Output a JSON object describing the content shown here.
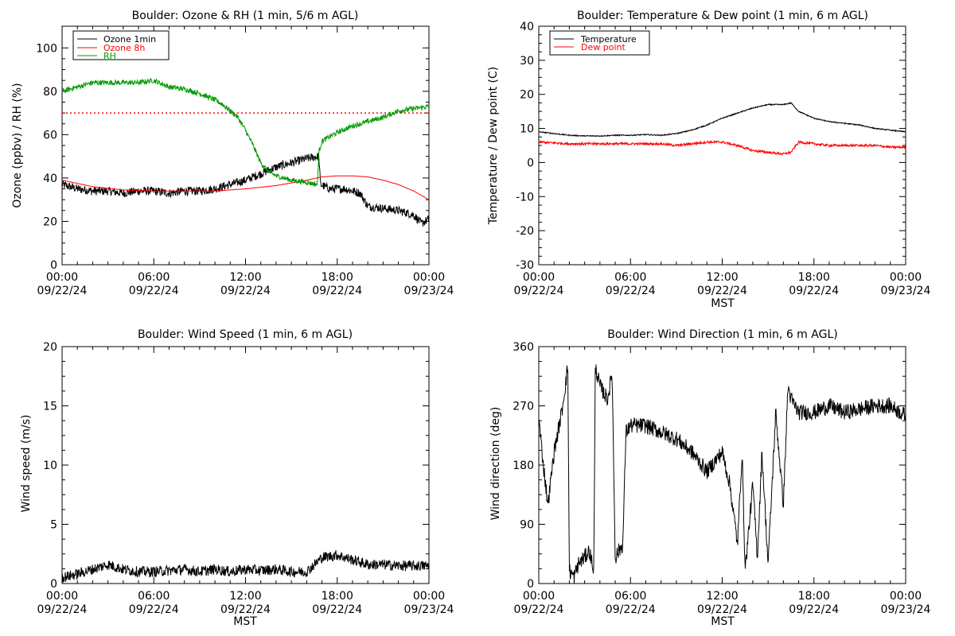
{
  "chart_data": [
    {
      "type": "line",
      "title": "Boulder: Ozone & RH (1 min, 5/6 m AGL)",
      "xlabel": "",
      "ylabel": "Ozone (ppbv) / RH (%)",
      "ylim": [
        0,
        110
      ],
      "yticks": [
        "0",
        "20",
        "40",
        "60",
        "80",
        "100"
      ],
      "xlim_hours": [
        0,
        24
      ],
      "xticks": [
        {
          "time": "00:00",
          "date": "09/22/24"
        },
        {
          "time": "06:00",
          "date": "09/22/24"
        },
        {
          "time": "12:00",
          "date": "09/22/24"
        },
        {
          "time": "18:00",
          "date": "09/22/24"
        },
        {
          "time": "00:00",
          "date": "09/23/24"
        }
      ],
      "legend_position": "top-left",
      "reference_line": {
        "value": 70,
        "style": "dotted",
        "color": "#ff0000"
      },
      "series": [
        {
          "name": "Ozone 1min",
          "color": "#000000",
          "noise": 2.0,
          "x": [
            0,
            1,
            2,
            3,
            4,
            5,
            6,
            7,
            8,
            9,
            10,
            11,
            12,
            13,
            14,
            15,
            16,
            16.8,
            16.9,
            17.5,
            18.5,
            19.5,
            20,
            21,
            22,
            23,
            23.5,
            24
          ],
          "y": [
            37,
            35,
            34,
            34,
            33,
            34,
            34,
            33,
            34,
            34,
            35,
            37,
            39,
            42,
            45,
            47,
            49,
            50,
            37,
            35,
            35,
            33,
            27,
            26,
            25,
            23,
            19,
            21
          ]
        },
        {
          "name": "Ozone 8h",
          "color": "#ff0000",
          "noise": 0,
          "x": [
            0,
            2,
            4,
            6,
            8,
            10,
            12,
            14,
            16,
            17,
            18,
            19,
            20,
            21,
            22,
            23,
            24
          ],
          "y": [
            39,
            36,
            34.5,
            34,
            34,
            34,
            35,
            36.5,
            39,
            40.5,
            41,
            41,
            40.5,
            39,
            37,
            34,
            30
          ]
        },
        {
          "name": "RH",
          "color": "#009900",
          "noise": 1.2,
          "x": [
            0,
            1,
            2,
            3,
            4,
            5,
            6,
            7,
            8,
            9,
            10,
            10.5,
            11,
            11.5,
            12,
            12.5,
            13,
            13.5,
            14,
            15,
            16,
            16.7,
            16.8,
            17,
            18,
            19,
            20,
            21,
            22,
            23,
            24
          ],
          "y": [
            80,
            82,
            84,
            84,
            84,
            84,
            85,
            82,
            81,
            79,
            76,
            74,
            71,
            68,
            62,
            55,
            47,
            43,
            41,
            39,
            38,
            37,
            52,
            57,
            61,
            64,
            66,
            68,
            71,
            72,
            73
          ]
        }
      ]
    },
    {
      "type": "line",
      "title": "Boulder: Temperature & Dew point (1 min, 6 m AGL)",
      "xlabel": "MST",
      "ylabel": "Temperature / Dew point (C)",
      "ylim": [
        -30,
        40
      ],
      "yticks": [
        "-30",
        "-20",
        "-10",
        "0",
        "10",
        "20",
        "30",
        "40"
      ],
      "xlim_hours": [
        0,
        24
      ],
      "xticks": [
        {
          "time": "00:00",
          "date": "09/22/24"
        },
        {
          "time": "06:00",
          "date": "09/22/24"
        },
        {
          "time": "12:00",
          "date": "09/22/24"
        },
        {
          "time": "18:00",
          "date": "09/22/24"
        },
        {
          "time": "00:00",
          "date": "09/23/24"
        }
      ],
      "legend_position": "top-left",
      "series": [
        {
          "name": "Temperature",
          "color": "#000000",
          "noise": 0.15,
          "x": [
            0,
            1,
            2,
            3,
            4,
            5,
            6,
            7,
            8,
            9,
            10,
            11,
            12,
            13,
            14,
            15,
            16,
            16.5,
            17,
            18,
            19,
            20,
            21,
            22,
            23,
            24
          ],
          "y": [
            9,
            8.5,
            8,
            7.8,
            7.8,
            8,
            8,
            8.2,
            8,
            8.5,
            9.5,
            11,
            13,
            14.5,
            16,
            17,
            17,
            17.5,
            15,
            13,
            12,
            11.5,
            11,
            10,
            9.5,
            9
          ]
        },
        {
          "name": "Dew point",
          "color": "#ff0000",
          "noise": 0.35,
          "x": [
            0,
            2,
            4,
            6,
            8,
            9,
            10,
            11,
            12,
            13,
            14,
            15,
            16,
            16.5,
            17,
            18,
            19,
            20,
            21,
            22,
            23,
            24
          ],
          "y": [
            6,
            5.5,
            5.5,
            5.5,
            5.5,
            5,
            5.5,
            6,
            6,
            5,
            3.5,
            3,
            2.5,
            3,
            6,
            5.5,
            5,
            5,
            5,
            5,
            4.5,
            4.5
          ]
        }
      ]
    },
    {
      "type": "line",
      "title": "Boulder: Wind Speed (1 min, 6 m AGL)",
      "xlabel": "MST",
      "ylabel": "Wind speed (m/s)",
      "ylim": [
        0,
        20
      ],
      "yticks": [
        "0",
        "5",
        "10",
        "15",
        "20"
      ],
      "xlim_hours": [
        0,
        24
      ],
      "xticks": [
        {
          "time": "00:00",
          "date": "09/22/24"
        },
        {
          "time": "06:00",
          "date": "09/22/24"
        },
        {
          "time": "12:00",
          "date": "09/22/24"
        },
        {
          "time": "18:00",
          "date": "09/22/24"
        },
        {
          "time": "00:00",
          "date": "09/23/24"
        }
      ],
      "series": [
        {
          "name": "",
          "color": "#000000",
          "noise": 0.45,
          "floor": 0,
          "x": [
            0,
            1,
            2,
            3,
            4,
            5,
            6,
            7,
            8,
            9,
            10,
            11,
            12,
            13,
            14,
            15,
            16,
            17,
            18,
            19,
            20,
            21,
            22,
            23,
            24
          ],
          "y": [
            0.5,
            0.8,
            1.2,
            1.6,
            1.2,
            1.0,
            1.0,
            1.1,
            1.2,
            1.0,
            1.2,
            1.0,
            1.2,
            1.1,
            1.2,
            1.0,
            1.0,
            2.2,
            2.4,
            2.0,
            1.6,
            1.6,
            1.5,
            1.5,
            1.5
          ]
        }
      ]
    },
    {
      "type": "line",
      "title": "Boulder: Wind Direction (1 min, 6 m AGL)",
      "xlabel": "MST",
      "ylabel": "Wind direction (deg)",
      "ylim": [
        0,
        360
      ],
      "yticks": [
        "0",
        "90",
        "180",
        "270",
        "360"
      ],
      "xlim_hours": [
        0,
        24
      ],
      "xticks": [
        {
          "time": "00:00",
          "date": "09/22/24"
        },
        {
          "time": "06:00",
          "date": "09/22/24"
        },
        {
          "time": "12:00",
          "date": "09/22/24"
        },
        {
          "time": "18:00",
          "date": "09/22/24"
        },
        {
          "time": "00:00",
          "date": "09/23/24"
        }
      ],
      "series": [
        {
          "name": "",
          "color": "#000000",
          "noise": 12,
          "floor": 0,
          "ceil": 360,
          "x": [
            0,
            0.3,
            0.6,
            1,
            1.5,
            1.9,
            2.0,
            2.3,
            2.6,
            3.0,
            3.3,
            3.6,
            3.7,
            4.0,
            4.5,
            4.8,
            5.0,
            5.5,
            5.7,
            6.0,
            7,
            8,
            9,
            10,
            11,
            12,
            12.5,
            13,
            13.3,
            13.5,
            14,
            14.3,
            14.6,
            15,
            15.5,
            16,
            16.3,
            16.5,
            17,
            18,
            19,
            20,
            21,
            22,
            23,
            24
          ],
          "y": [
            250,
            180,
            120,
            200,
            260,
            330,
            20,
            10,
            30,
            40,
            50,
            20,
            330,
            300,
            280,
            320,
            40,
            60,
            230,
            240,
            240,
            230,
            220,
            200,
            170,
            200,
            150,
            60,
            200,
            20,
            150,
            40,
            200,
            30,
            260,
            120,
            300,
            280,
            260,
            260,
            270,
            260,
            265,
            270,
            270,
            255
          ]
        }
      ]
    }
  ]
}
